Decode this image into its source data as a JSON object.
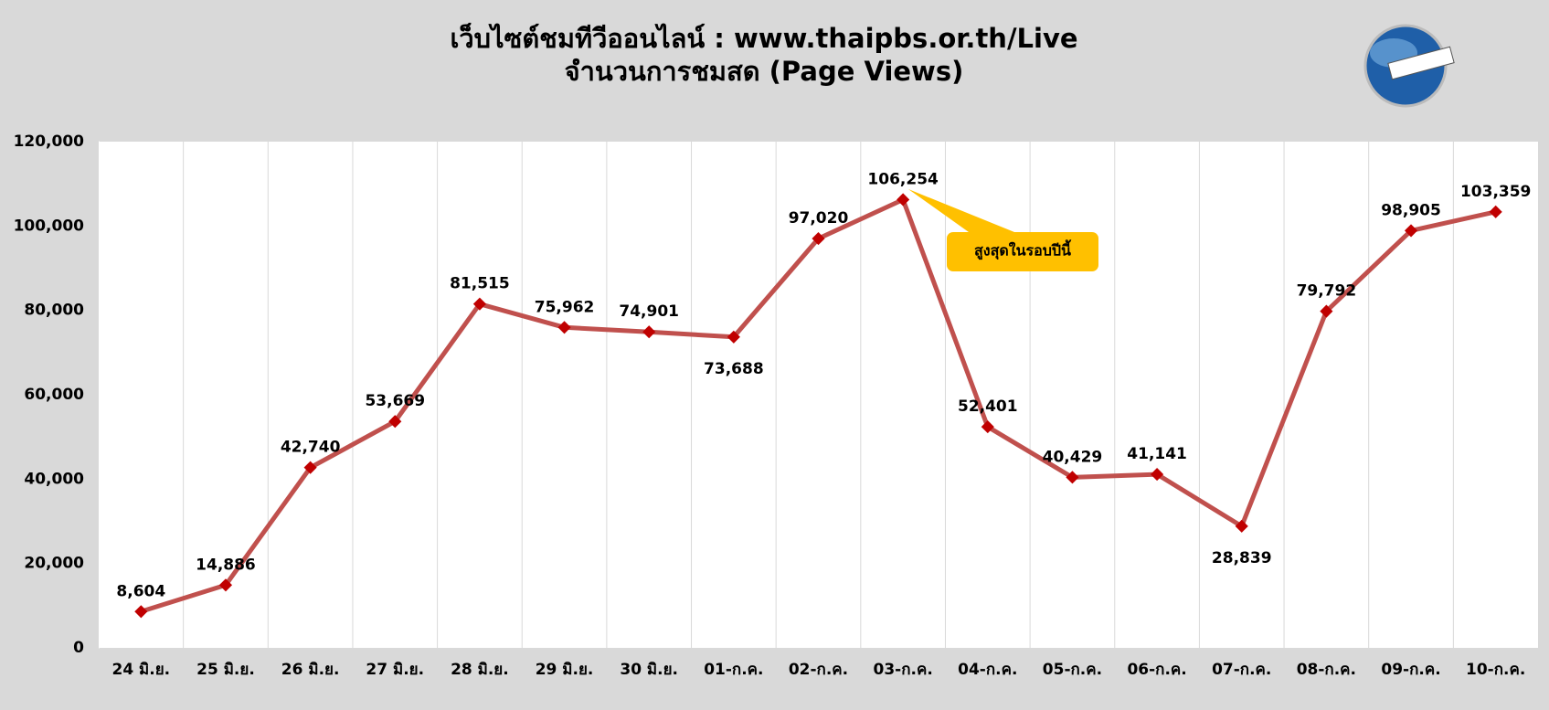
{
  "chart_data": {
    "type": "line",
    "title": "เว็บไซต์ชมทีวีออนไลน์ : www.thaipbs.or.th/Live",
    "subtitle": "จำนวนการชมสด (Page Views)",
    "categories": [
      "24 มิ.ย.",
      "25 มิ.ย.",
      "26 มิ.ย.",
      "27 มิ.ย.",
      "28 มิ.ย.",
      "29 มิ.ย.",
      "30 มิ.ย.",
      "01-ก.ค.",
      "02-ก.ค.",
      "03-ก.ค.",
      "04-ก.ค.",
      "05-ก.ค.",
      "06-ก.ค.",
      "07-ก.ค.",
      "08-ก.ค.",
      "09-ก.ค.",
      "10-ก.ค."
    ],
    "values": [
      8604,
      14886,
      42740,
      53669,
      81515,
      75962,
      74901,
      73688,
      97020,
      106254,
      52401,
      40429,
      41141,
      28839,
      79792,
      98905,
      103359
    ],
    "value_labels": [
      "8,604",
      "14,886",
      "42,740",
      "53,669",
      "81,515",
      "75,962",
      "74,901",
      "73,688",
      "97,020",
      "106,254",
      "52,401",
      "40,429",
      "41,141",
      "28,839",
      "79,792",
      "98,905",
      "103,359"
    ],
    "color": "#c0504d",
    "marker_color": "#c00000",
    "ylim": [
      0,
      120000
    ],
    "yticks": [
      0,
      {
        "value": 20000,
        "label": "20,000"
      },
      {
        "value": 40000,
        "label": "40,000"
      },
      {
        "value": 60000,
        "label": "60,000"
      },
      {
        "value": 80000,
        "label": "80,000"
      },
      {
        "value": 100000,
        "label": "100,000"
      },
      {
        "value": 120000,
        "label": "120,000"
      }
    ],
    "grid": true,
    "annotation": "สูงสุดในรอบปีนี้"
  }
}
